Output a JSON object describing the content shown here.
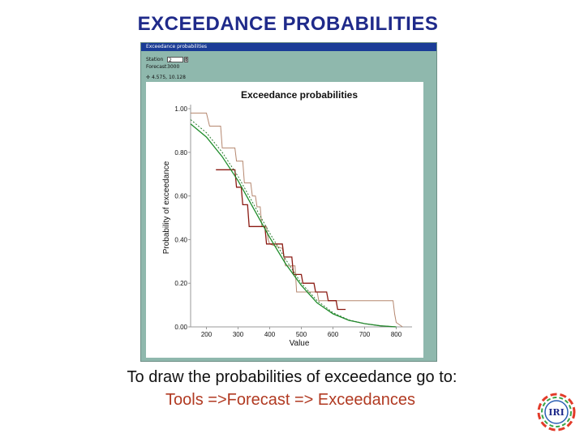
{
  "slide": {
    "title": "EXCEEDANCE PROBABILITIES",
    "instruction": "To draw the probabilities of exceedance go to:",
    "menu_path": "Tools =>Forecast => Exceedances"
  },
  "window": {
    "title": "Exceedance probabilities",
    "station_label": "Station",
    "station_value": "2",
    "forecast_label": "Forecast",
    "forecast_value": "3000",
    "coord_readout": "4.575, 10.128"
  },
  "logo": {
    "text": "IRI",
    "colors": [
      "#e23b2a",
      "#f2a51a",
      "#3aa548",
      "#2b5fb4"
    ]
  },
  "colors": {
    "title": "#1f2a8a",
    "menu_path": "#b13a22",
    "window_bg": "#8fb8ad",
    "series_step_light": "#b5876f",
    "series_step_dark": "#8b1a12",
    "series_fit_green": "#1e8c2a",
    "series_fit_dotted": "#2e7d32"
  },
  "chart_data": {
    "type": "line",
    "title": "Exceedance probabilities",
    "xlabel": "Value",
    "ylabel": "Probability of exceedance",
    "xlim": [
      150,
      850
    ],
    "ylim": [
      0,
      1
    ],
    "xticks": [
      "200",
      "300",
      "400",
      "500",
      "600",
      "700",
      "800"
    ],
    "yticks": [
      "0.00",
      "0.20",
      "0.40",
      "0.60",
      "0.80",
      "1.00"
    ],
    "grid": false,
    "series": [
      {
        "style": "step-light",
        "x": [
          150,
          200,
          210,
          245,
          250,
          290,
          295,
          315,
          320,
          340,
          345,
          355,
          360,
          370,
          375,
          390,
          395,
          400,
          440,
          445,
          450,
          480,
          485,
          550,
          555,
          790,
          795,
          800,
          820
        ],
        "y": [
          0.98,
          0.98,
          0.92,
          0.92,
          0.82,
          0.82,
          0.76,
          0.76,
          0.66,
          0.66,
          0.6,
          0.6,
          0.55,
          0.55,
          0.46,
          0.46,
          0.4,
          0.38,
          0.36,
          0.32,
          0.28,
          0.28,
          0.16,
          0.16,
          0.12,
          0.12,
          0.06,
          0.02,
          0.0
        ]
      },
      {
        "style": "step-dark",
        "x": [
          230,
          290,
          295,
          310,
          315,
          330,
          335,
          385,
          390,
          440,
          445,
          470,
          475,
          500,
          505,
          540,
          545,
          580,
          585,
          610,
          615,
          640
        ],
        "y": [
          0.72,
          0.72,
          0.64,
          0.64,
          0.56,
          0.56,
          0.46,
          0.46,
          0.38,
          0.38,
          0.32,
          0.32,
          0.24,
          0.24,
          0.2,
          0.2,
          0.16,
          0.16,
          0.12,
          0.12,
          0.08,
          0.08
        ]
      },
      {
        "style": "fit-green",
        "x": [
          150,
          200,
          250,
          300,
          350,
          400,
          450,
          500,
          550,
          600,
          650,
          700,
          750,
          800
        ],
        "y": [
          0.93,
          0.87,
          0.78,
          0.67,
          0.54,
          0.41,
          0.29,
          0.19,
          0.11,
          0.06,
          0.03,
          0.015,
          0.005,
          0.0
        ]
      },
      {
        "style": "fit-dotted",
        "x": [
          150,
          200,
          250,
          300,
          350,
          400,
          450,
          500,
          550,
          600,
          650,
          700,
          750,
          800
        ],
        "y": [
          0.95,
          0.89,
          0.8,
          0.69,
          0.56,
          0.43,
          0.31,
          0.2,
          0.12,
          0.065,
          0.032,
          0.015,
          0.005,
          0.0
        ]
      }
    ]
  }
}
